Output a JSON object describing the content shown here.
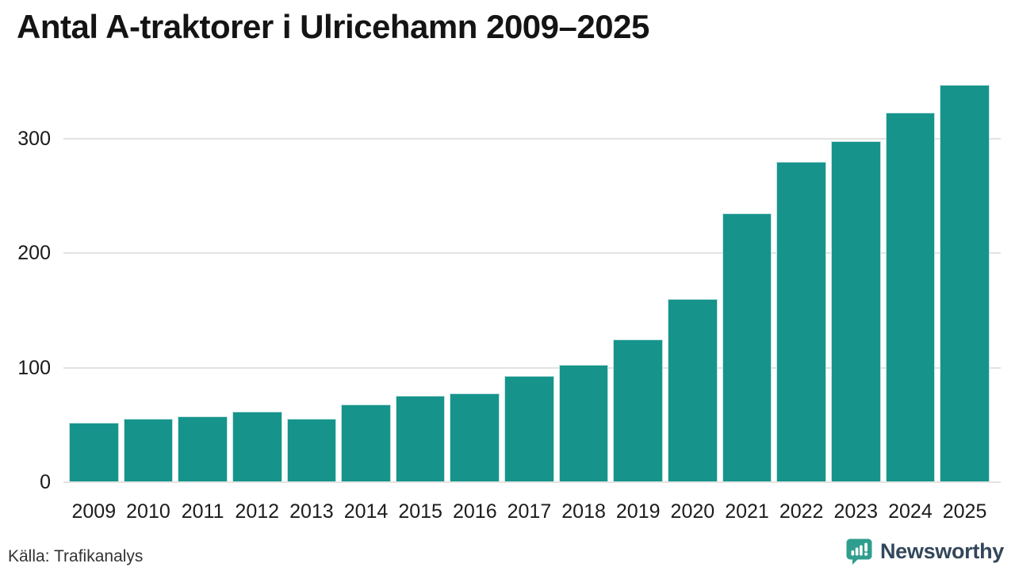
{
  "title": "Antal A-traktorer i Ulricehamn 2009–2025",
  "source": "Källa: Trafikanalys",
  "branding": {
    "name": "Newsworthy"
  },
  "colors": {
    "bar": "#16948b",
    "grid": "#e3e3e3",
    "title_text": "#141414",
    "axis_text": "#1a1a1a",
    "source_text": "#333333",
    "brand_text": "#33475b",
    "logo_teal": "#2f9e8e"
  },
  "chart_data": {
    "type": "bar",
    "title": "Antal A-traktorer i Ulricehamn 2009–2025",
    "categories": [
      "2009",
      "2010",
      "2011",
      "2012",
      "2013",
      "2014",
      "2015",
      "2016",
      "2017",
      "2018",
      "2019",
      "2020",
      "2021",
      "2022",
      "2023",
      "2024",
      "2025"
    ],
    "values": [
      51,
      55,
      57,
      61,
      55,
      67,
      75,
      77,
      92,
      102,
      124,
      159,
      234,
      279,
      297,
      322,
      346
    ],
    "xlabel": "",
    "ylabel": "",
    "y_ticks": [
      0,
      100,
      200,
      300
    ],
    "ylim": [
      0,
      360
    ],
    "grid": true,
    "legend": "none",
    "bar_color": "#16948b",
    "source": "Källa: Trafikanalys"
  }
}
